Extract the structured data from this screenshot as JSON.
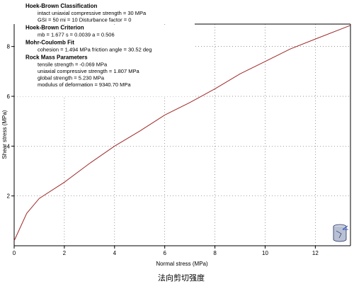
{
  "chart_data": {
    "type": "line",
    "xlabel": "Normal stress (MPa)",
    "ylabel": "Shear stress (MPa)",
    "xlim": [
      0,
      13.4
    ],
    "ylim": [
      0,
      8.9
    ],
    "x_ticks": [
      "0",
      "2",
      "4",
      "6",
      "8",
      "10",
      "12"
    ],
    "y_ticks": [
      "2",
      "4",
      "6",
      "8"
    ],
    "grid": true,
    "series": [
      {
        "color": "#a02828",
        "x": [
          0,
          0.5,
          1,
          2,
          3,
          4,
          5,
          6,
          7,
          8,
          9,
          10,
          11,
          12,
          13.4
        ],
        "y": [
          0.2,
          1.3,
          1.9,
          2.55,
          3.3,
          4.0,
          4.6,
          5.25,
          5.75,
          6.3,
          6.9,
          7.4,
          7.9,
          8.3,
          8.85
        ]
      }
    ]
  },
  "info": {
    "sections": [
      {
        "title": "Hoek-Brown Classification",
        "lines": [
          "intact uniaxial compressive strength = 30 MPa",
          "GSI = 50    mi = 10    Disturbance factor = 0"
        ]
      },
      {
        "title": "Hoek-Brown Criterion",
        "lines": [
          "mb = 1.677    s = 0.0039    a = 0.506"
        ]
      },
      {
        "title": "Mohr-Coulomb Fit",
        "lines": [
          "cohesion = 1.494 MPa    friction angle = 30.52 deg"
        ]
      },
      {
        "title": "Rock Mass Parameters",
        "lines": [
          "tensile strength = -0.069 MPa",
          "uniaxial compressive strength = 1.807 MPa",
          "global strength = 5.230 MPa",
          "modulus of deformation = 9340.70 MPa"
        ]
      }
    ]
  },
  "caption": "法向剪切强度",
  "logo": {
    "icon": "rock-sample-icon"
  }
}
